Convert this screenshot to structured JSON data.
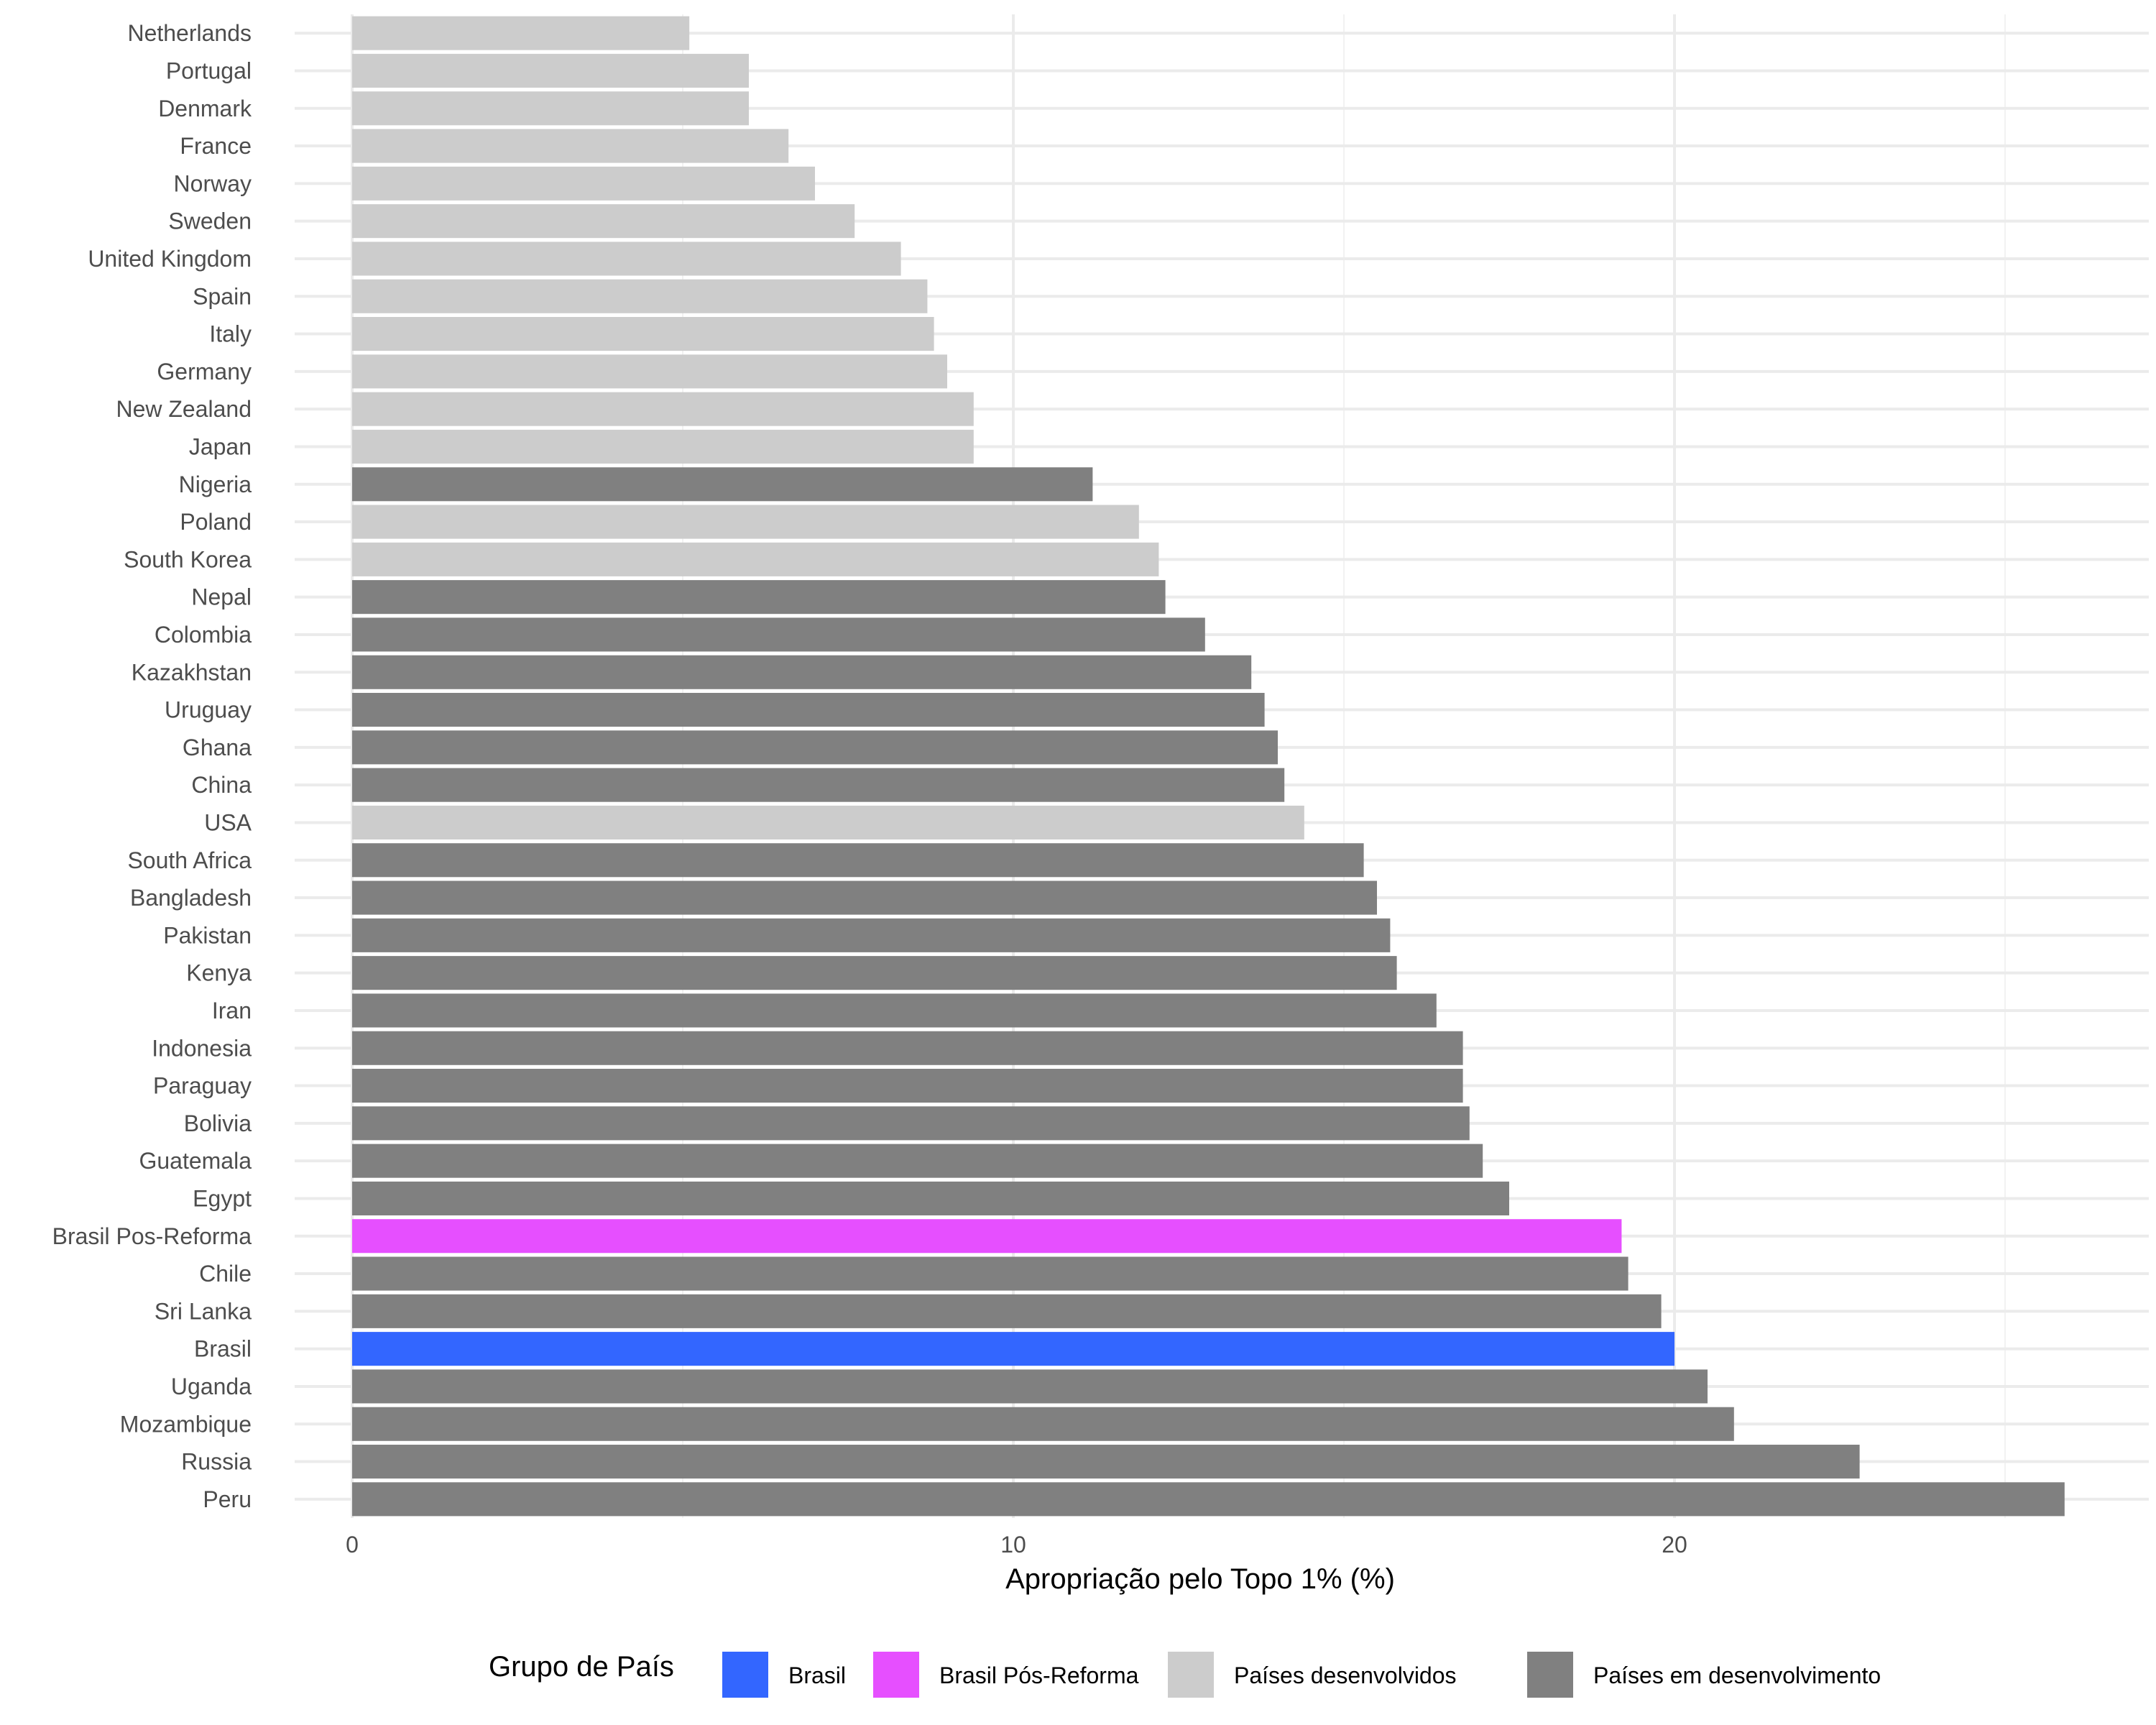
{
  "chart_data": {
    "type": "bar",
    "orientation": "horizontal",
    "title": "",
    "xlabel": "Apropriação pelo Topo 1% (%)",
    "ylabel": "",
    "xlim": [
      0,
      27
    ],
    "x_ticks": [
      0,
      10,
      20
    ],
    "grid": true,
    "legend": {
      "title": "Grupo de País",
      "placement": "bottom",
      "entries": [
        {
          "key": "brasil",
          "label": "Brasil",
          "color": "#3366FF"
        },
        {
          "key": "pos",
          "label": "Brasil Pós-Reforma",
          "color": "#E64FFF"
        },
        {
          "key": "dev",
          "label": "Países desenvolvidos",
          "color": "#CCCCCC"
        },
        {
          "key": "emd",
          "label": "Países em desenvolvimento",
          "color": "#808080"
        }
      ]
    },
    "categories": [
      "Netherlands",
      "Portugal",
      "Denmark",
      "France",
      "Norway",
      "Sweden",
      "United Kingdom",
      "Spain",
      "Italy",
      "Germany",
      "New Zealand",
      "Japan",
      "Nigeria",
      "Poland",
      "South Korea",
      "Nepal",
      "Colombia",
      "Kazakhstan",
      "Uruguay",
      "Ghana",
      "China",
      "USA",
      "South Africa",
      "Bangladesh",
      "Pakistan",
      "Kenya",
      "Iran",
      "Indonesia",
      "Paraguay",
      "Bolivia",
      "Guatemala",
      "Egypt",
      "Brasil Pos-Reforma",
      "Chile",
      "Sri Lanka",
      "Brasil",
      "Uganda",
      "Mozambique",
      "Russia",
      "Peru"
    ],
    "values": [
      5.1,
      6.0,
      6.0,
      6.6,
      7.0,
      7.6,
      8.3,
      8.7,
      8.8,
      9.0,
      9.4,
      9.4,
      11.2,
      11.9,
      12.2,
      12.3,
      12.9,
      13.6,
      13.8,
      14.0,
      14.1,
      14.4,
      15.3,
      15.5,
      15.7,
      15.8,
      16.4,
      16.8,
      16.8,
      16.9,
      17.1,
      17.5,
      19.2,
      19.3,
      19.8,
      20.0,
      20.5,
      20.9,
      22.8,
      25.9
    ],
    "groups": [
      "dev",
      "dev",
      "dev",
      "dev",
      "dev",
      "dev",
      "dev",
      "dev",
      "dev",
      "dev",
      "dev",
      "dev",
      "emd",
      "dev",
      "dev",
      "emd",
      "emd",
      "emd",
      "emd",
      "emd",
      "emd",
      "dev",
      "emd",
      "emd",
      "emd",
      "emd",
      "emd",
      "emd",
      "emd",
      "emd",
      "emd",
      "emd",
      "pos",
      "emd",
      "emd",
      "brasil",
      "emd",
      "emd",
      "emd",
      "emd"
    ]
  }
}
